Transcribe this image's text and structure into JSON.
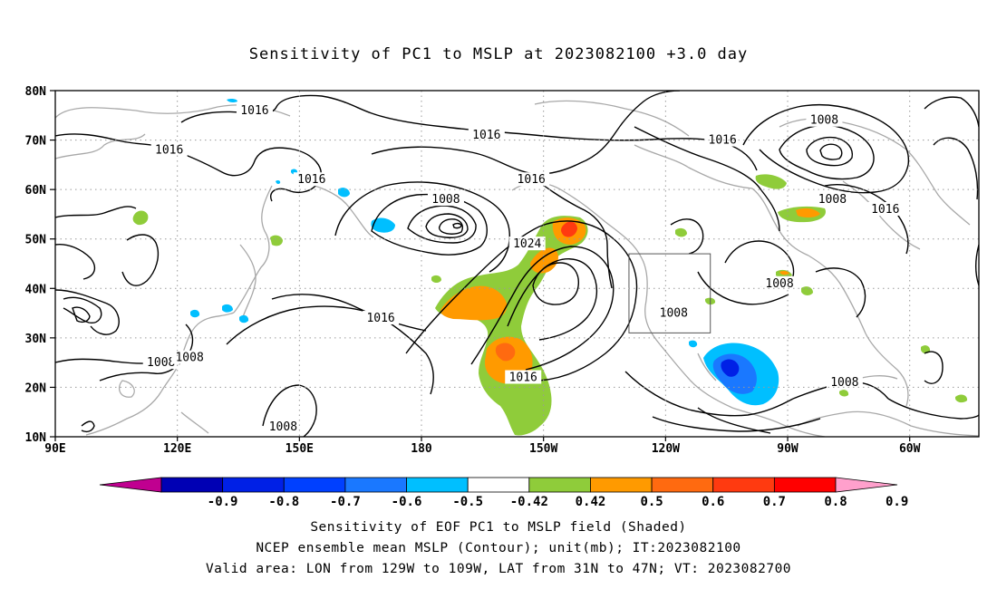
{
  "title": "Sensitivity of PC1 to MSLP at 2023082100 +3.0 day",
  "axes": {
    "lat_labels": [
      {
        "lat": 80,
        "label": "80N"
      },
      {
        "lat": 70,
        "label": "70N"
      },
      {
        "lat": 60,
        "label": "60N"
      },
      {
        "lat": 50,
        "label": "50N"
      },
      {
        "lat": 40,
        "label": "40N"
      },
      {
        "lat": 30,
        "label": "30N"
      },
      {
        "lat": 20,
        "label": "20N"
      },
      {
        "lat": 10,
        "label": "10N"
      }
    ],
    "lon_labels": [
      {
        "lon": 90,
        "label": "90E"
      },
      {
        "lon": 120,
        "label": "120E"
      },
      {
        "lon": 150,
        "label": "150E"
      },
      {
        "lon": 180,
        "label": "180"
      },
      {
        "lon": 210,
        "label": "150W"
      },
      {
        "lon": 240,
        "label": "120W"
      },
      {
        "lon": 270,
        "label": "90W"
      },
      {
        "lon": 300,
        "label": "60W"
      }
    ],
    "lon_range": [
      90,
      317
    ],
    "lat_range": [
      10,
      80
    ],
    "grid": true
  },
  "contour_labels": [
    {
      "text": "1016",
      "lon": 139,
      "lat": 76
    },
    {
      "text": "1016",
      "lon": 118,
      "lat": 68
    },
    {
      "text": "1016",
      "lon": 153,
      "lat": 62
    },
    {
      "text": "1016",
      "lon": 196,
      "lat": 71
    },
    {
      "text": "1016",
      "lon": 254,
      "lat": 70
    },
    {
      "text": "1016",
      "lon": 207,
      "lat": 62
    },
    {
      "text": "1008",
      "lon": 279,
      "lat": 74
    },
    {
      "text": "1008",
      "lon": 281,
      "lat": 58
    },
    {
      "text": "1016",
      "lon": 294,
      "lat": 56
    },
    {
      "text": "1008",
      "lon": 186,
      "lat": 58
    },
    {
      "text": "1024",
      "lon": 206,
      "lat": 49
    },
    {
      "text": "1008",
      "lon": 268,
      "lat": 41
    },
    {
      "text": "1008",
      "lon": 242,
      "lat": 35
    },
    {
      "text": "1016",
      "lon": 170,
      "lat": 34
    },
    {
      "text": "1008",
      "lon": 116,
      "lat": 25
    },
    {
      "text": "1008",
      "lon": 123,
      "lat": 26
    },
    {
      "text": "1016",
      "lon": 205,
      "lat": 22
    },
    {
      "text": "1008",
      "lon": 284,
      "lat": 21
    },
    {
      "text": "1008",
      "lon": 146,
      "lat": 12
    }
  ],
  "valid_box": {
    "lon_min": 231,
    "lon_max": 251,
    "lat_min": 31,
    "lat_max": 47
  },
  "colorbar": {
    "colors": [
      "#c00090",
      "#0000b4",
      "#0020e6",
      "#0040ff",
      "#1a78ff",
      "#00bfff",
      "#ffffff",
      "#8fcc3a",
      "#ff9a00",
      "#ff6a10",
      "#ff3a10",
      "#ff0000",
      "#ffa0cc"
    ],
    "labels": [
      "-0.9",
      "-0.8",
      "-0.7",
      "-0.6",
      "-0.5",
      "-0.42",
      "0.42",
      "0.5",
      "0.6",
      "0.7",
      "0.8",
      "0.9"
    ]
  },
  "captions": {
    "line1": "Sensitivity of EOF PC1 to MSLP field (Shaded)",
    "line2": "NCEP ensemble mean MSLP (Contour); unit(mb); IT:2023082100",
    "line3": "Valid area: LON from 129W to 109W, LAT from 31N to 47N; VT: 2023082700"
  }
}
